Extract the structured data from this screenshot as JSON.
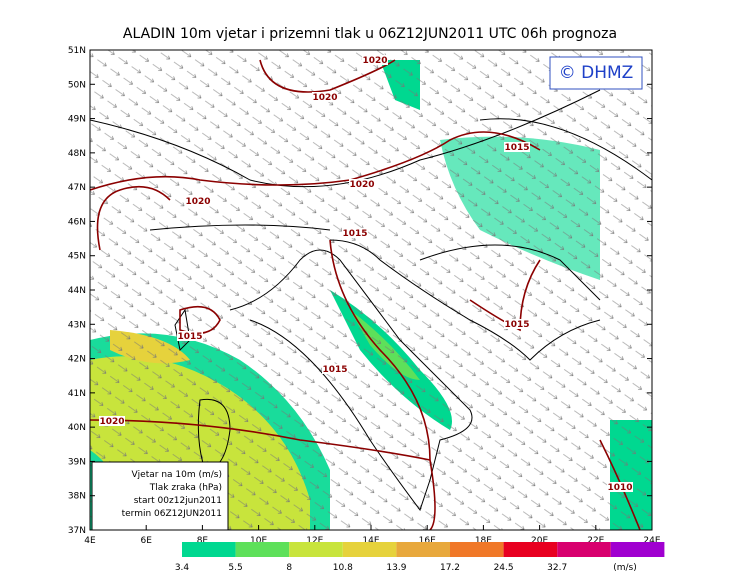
{
  "header": {
    "title": "ALADIN 10m vjetar i prizemni tlak u 06Z12JUN2011 UTC 06h prognoza",
    "badge": "© DHMZ"
  },
  "map": {
    "lat_labels": [
      "51N",
      "50N",
      "49N",
      "48N",
      "47N",
      "46N",
      "45N",
      "44N",
      "43N",
      "42N",
      "41N",
      "40N",
      "39N",
      "38N",
      "37N"
    ],
    "lon_labels": [
      "4E",
      "6E",
      "8E",
      "10E",
      "12E",
      "14E",
      "16E",
      "18E",
      "20E",
      "22E",
      "24E"
    ],
    "isobar_labels": [
      "1020",
      "1020",
      "1020",
      "1020",
      "1015",
      "1015",
      "1015",
      "1015",
      "1015",
      "1020",
      "1010"
    ]
  },
  "info_box": {
    "lines": [
      "Vjetar na 10m (m/s)",
      "Tlak zraka (hPa)",
      "start 00z12jun2011",
      "termin 06Z12JUN2011"
    ]
  },
  "legend": {
    "values": [
      3.4,
      5.5,
      8,
      10.8,
      13.9,
      17.2,
      24.5,
      32.7
    ],
    "unit": "(m/s)",
    "colors": [
      "#00d890",
      "#5ee05a",
      "#c8e43c",
      "#e6d23c",
      "#e8a83c",
      "#f07828",
      "#e80020",
      "#d8006e",
      "#a000d0"
    ]
  }
}
